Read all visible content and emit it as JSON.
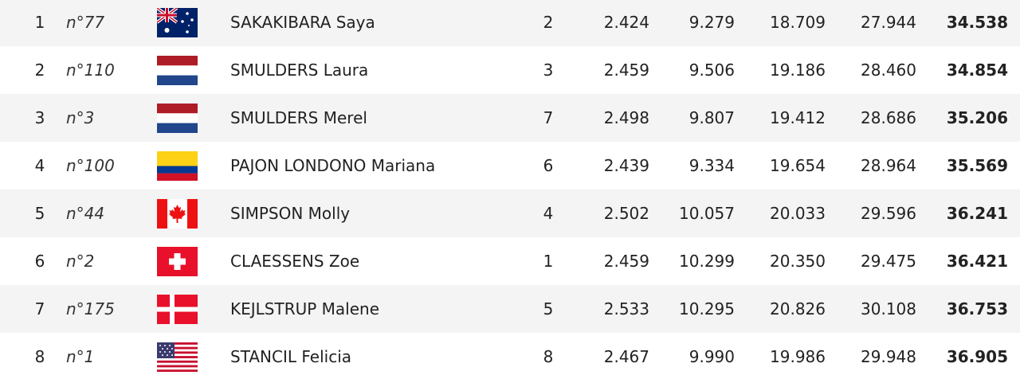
{
  "table": {
    "rows": [
      [
        "1",
        "n°77",
        "SAKAKIBARA Saya",
        "2",
        "2.424",
        "9.279",
        "18.709",
        "27.944",
        "34.538"
      ],
      [
        "2",
        "n°110",
        "SMULDERS Laura",
        "3",
        "2.459",
        "9.506",
        "19.186",
        "28.460",
        "34.854"
      ],
      [
        "3",
        "n°3",
        "SMULDERS Merel",
        "7",
        "2.498",
        "9.807",
        "19.412",
        "28.686",
        "35.206"
      ],
      [
        "4",
        "n°100",
        "PAJON LONDONO Mariana",
        "6",
        "2.439",
        "9.334",
        "19.654",
        "28.964",
        "35.569"
      ],
      [
        "5",
        "n°44",
        "SIMPSON Molly",
        "4",
        "2.502",
        "10.057",
        "20.033",
        "29.596",
        "36.241"
      ],
      [
        "6",
        "n°2",
        "CLAESSENS Zoe",
        "1",
        "2.459",
        "10.299",
        "20.350",
        "29.475",
        "36.421"
      ],
      [
        "7",
        "n°175",
        "KEJLSTRUP Malene",
        "5",
        "2.533",
        "10.295",
        "20.826",
        "30.108",
        "36.753"
      ],
      [
        "8",
        "n°1",
        "STANCIL Felicia",
        "8",
        "2.467",
        "9.990",
        "19.986",
        "29.948",
        "36.905"
      ]
    ]
  }
}
